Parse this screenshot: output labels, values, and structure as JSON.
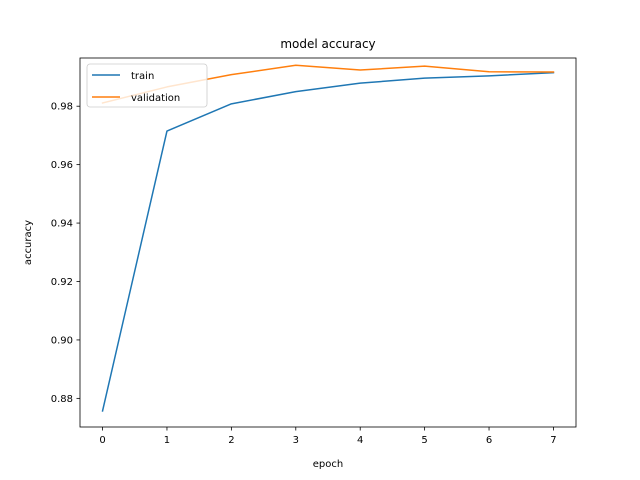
{
  "chart_data": {
    "type": "line",
    "title": "model accuracy",
    "xlabel": "epoch",
    "ylabel": "accuracy",
    "x": [
      0,
      1,
      2,
      3,
      4,
      5,
      6,
      7
    ],
    "xlim": [
      -0.35,
      7.35
    ],
    "ylim": [
      0.8702,
      0.9965
    ],
    "xticks": [
      "0",
      "1",
      "2",
      "3",
      "4",
      "5",
      "6",
      "7"
    ],
    "yticks": [
      "0.88",
      "0.90",
      "0.92",
      "0.94",
      "0.96",
      "0.98"
    ],
    "grid": false,
    "legend_position": "upper left",
    "series": [
      {
        "name": "train",
        "color": "#1f77b4",
        "values": [
          0.8757,
          0.9715,
          0.9808,
          0.985,
          0.9879,
          0.9896,
          0.9904,
          0.9915
        ]
      },
      {
        "name": "validation",
        "color": "#ff7f0e",
        "values": [
          0.9811,
          0.9866,
          0.9908,
          0.994,
          0.9924,
          0.9937,
          0.9918,
          0.9917
        ]
      }
    ]
  }
}
